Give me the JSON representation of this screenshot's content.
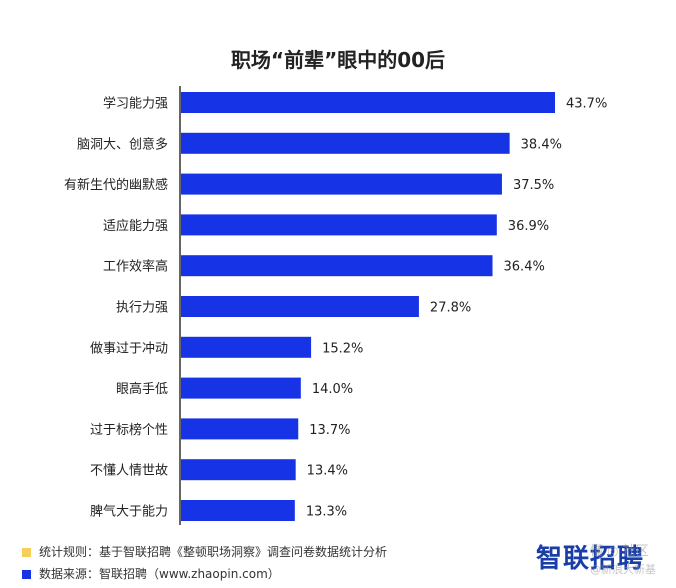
{
  "chart_data": {
    "type": "bar",
    "orientation": "horizontal",
    "title": "职场“前辈”眼中的00后",
    "categories": [
      "学习能力强",
      "脑洞大、创意多",
      "有新生代的幽默感",
      "适应能力强",
      "工作效率高",
      "执行力强",
      "做事过于冲动",
      "眼高手低",
      "过于标榜个性",
      "不懂人情世故",
      "脾气大于能力"
    ],
    "values": [
      43.7,
      38.4,
      37.5,
      36.9,
      36.4,
      27.8,
      15.2,
      14.0,
      13.7,
      13.4,
      13.3
    ],
    "value_labels": [
      "43.7%",
      "38.4%",
      "37.5%",
      "36.9%",
      "36.4%",
      "27.8%",
      "15.2%",
      "14.0%",
      "13.7%",
      "13.4%",
      "13.3%"
    ],
    "unit": "%",
    "xlim": [
      0,
      43.7
    ],
    "grid": false,
    "bar_color": "#1633e6"
  },
  "notes": [
    {
      "color": "#f5cf5a",
      "text": "统计规则：基于智联招聘《整顿职场洞察》调查问卷数据统计分析"
    },
    {
      "color": "#1633e6",
      "text": "数据来源：智联招聘（www.zhaopin.com）"
    }
  ],
  "brand": {
    "logo": "智联招聘"
  },
  "watermark": {
    "line1": "懂 ◎ 社区",
    "line2": "@新浪大新基"
  }
}
